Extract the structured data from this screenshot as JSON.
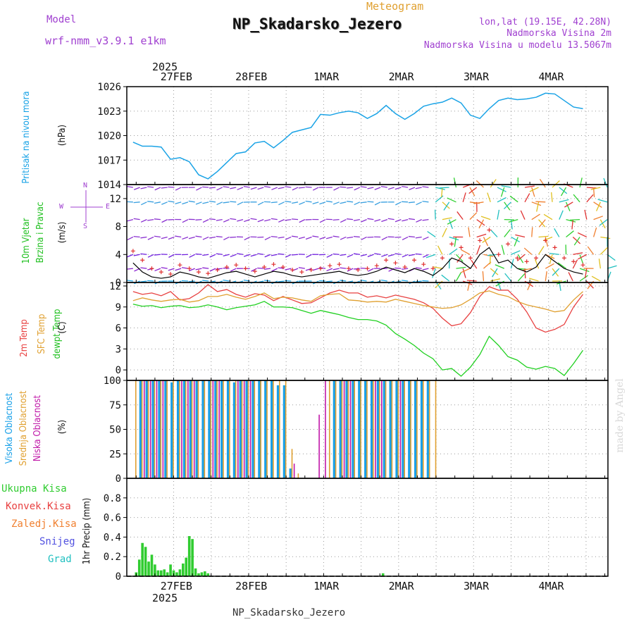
{
  "header": {
    "model_label": "Model",
    "model_name": "wrf-nmm_v3.9.1 e1km",
    "meteogram_label": "Meteogram",
    "station": "NP_Skadarsko_Jezero",
    "lonlat": "lon,lat (19.15E, 42.28N)",
    "elevation": "Nadmorska Visina 2m",
    "model_elevation": "Nadmorska Visina u modelu 13.5067m",
    "footer_station": "NP_Skadarsko_Jezero",
    "watermark": "made by Angel"
  },
  "colors": {
    "pressure": "#1aa3e6",
    "wind_speed": "#000000",
    "gust": "#e03030",
    "temp2m": "#e84040",
    "sfc": "#e0a030",
    "dewpt": "#20d020",
    "high_cloud": "#18a0e8",
    "mid_cloud": "#e0a030",
    "low_cloud": "#c018a8",
    "total_precip": "#30cc30",
    "conv_precip": "#e84040",
    "frozen_precip": "#f08030",
    "snow": "#5050e0",
    "hail": "#20c0c0"
  },
  "time_axis": {
    "year": "2025",
    "dates": [
      "27FEB",
      "28FEB",
      "1MAR",
      "2MAR",
      "3MAR",
      "4MAR"
    ]
  },
  "chart_data": [
    {
      "type": "line",
      "panel": "pressure",
      "ylabels": [
        "Pritisak na nivou mora",
        "(hPa)"
      ],
      "ylim": [
        1014,
        1026
      ],
      "yticks": [
        "1026",
        "1023",
        "1020",
        "1017",
        "1014"
      ],
      "x_hours": [
        0,
        3,
        6,
        9,
        12,
        15,
        18,
        21,
        24,
        27,
        30,
        33,
        36,
        39,
        42,
        45,
        48,
        51,
        54,
        57,
        60,
        63,
        66,
        69,
        72,
        75,
        78,
        81,
        84,
        87,
        90,
        93,
        96,
        99,
        102,
        105,
        108,
        111,
        114,
        117,
        120,
        123,
        126,
        129,
        132,
        135,
        138,
        141,
        144
      ],
      "series": [
        {
          "values": [
            1019.2,
            1018.7,
            1018.7,
            1018.6,
            1017.1,
            1017.3,
            1016.8,
            1015.2,
            1014.7,
            1015.6,
            1016.7,
            1017.8,
            1018.0,
            1019.1,
            1019.3,
            1018.5,
            1019.4,
            1020.4,
            1020.7,
            1021.0,
            1022.6,
            1022.5,
            1022.8,
            1023.0,
            1022.8,
            1022.1,
            1022.7,
            1023.7,
            1022.7,
            1022.0,
            1022.7,
            1023.6,
            1023.9,
            1024.1,
            1024.6,
            1024.0,
            1022.5,
            1022.1,
            1023.3,
            1024.3,
            1024.6,
            1024.4,
            1024.5,
            1024.7,
            1025.2,
            1025.1,
            1024.3,
            1023.5,
            1023.3
          ]
        }
      ]
    },
    {
      "type": "line",
      "panel": "wind",
      "ylabels": [
        "10m Vjetar",
        "Brzina i Pravac",
        "(m/s)"
      ],
      "direction_key": [
        "N",
        "W",
        "E",
        "S"
      ],
      "ylim": [
        0,
        14
      ],
      "yticks": [
        "12",
        "8",
        "4",
        "0"
      ],
      "x_hours": [
        0,
        3,
        6,
        9,
        12,
        15,
        18,
        21,
        24,
        27,
        30,
        33,
        36,
        39,
        42,
        45,
        48,
        51,
        54,
        57,
        60,
        63,
        66,
        69,
        72,
        75,
        78,
        81,
        84,
        87,
        90,
        93,
        96,
        99,
        102,
        105,
        108,
        111,
        114,
        117,
        120,
        123,
        126,
        129,
        132,
        135,
        138,
        141,
        144
      ],
      "series": [
        {
          "values": [
            2.8,
            1.5,
            0.8,
            0.6,
            0.8,
            1.5,
            1.2,
            0.8,
            0.6,
            1.0,
            1.4,
            1.6,
            1.2,
            0.8,
            1.2,
            1.6,
            1.4,
            1.0,
            0.8,
            1.0,
            1.2,
            1.4,
            1.6,
            1.2,
            1.0,
            1.2,
            1.6,
            2.2,
            1.8,
            1.4,
            2.0,
            1.6,
            1.0,
            2.0,
            3.5,
            3.0,
            2.0,
            4.0,
            5.0,
            2.8,
            3.2,
            2.0,
            1.5,
            2.2,
            4.0,
            3.0,
            2.0,
            1.5,
            1.2
          ]
        },
        {
          "values": [
            4.5,
            3.2,
            2.0,
            1.5,
            1.2,
            2.5,
            2.0,
            1.5,
            1.3,
            1.8,
            2.2,
            2.5,
            2.0,
            1.6,
            2.2,
            2.6,
            2.2,
            1.8,
            1.5,
            1.8,
            2.0,
            2.4,
            2.6,
            2.0,
            1.8,
            2.0,
            2.4,
            3.2,
            2.8,
            2.2,
            3.2,
            2.6,
            2.0,
            3.5,
            5.5,
            5.0,
            3.5,
            6.0,
            7.5,
            4.0,
            5.5,
            3.5,
            3.0,
            3.5,
            6.0,
            5.0,
            3.5,
            3.0,
            2.5
          ]
        }
      ]
    },
    {
      "type": "line",
      "panel": "temperature",
      "ylabels": [
        "2m Temp",
        "SFC Temp",
        "dewpt Temp",
        "(C)"
      ],
      "ylim": [
        -1.5,
        12.5
      ],
      "yticks": [
        "12",
        "9",
        "6",
        "3",
        "0"
      ],
      "x_hours": [
        0,
        3,
        6,
        9,
        12,
        15,
        18,
        21,
        24,
        27,
        30,
        33,
        36,
        39,
        42,
        45,
        48,
        51,
        54,
        57,
        60,
        63,
        66,
        69,
        72,
        75,
        78,
        81,
        84,
        87,
        90,
        93,
        96,
        99,
        102,
        105,
        108,
        111,
        114,
        117,
        120,
        123,
        126,
        129,
        132,
        135,
        138,
        141,
        144
      ],
      "series": [
        {
          "values": [
            11.2,
            10.8,
            11.0,
            10.6,
            11.2,
            10.0,
            10.2,
            11.0,
            12.2,
            11.2,
            11.5,
            10.8,
            10.4,
            10.9,
            10.7,
            9.9,
            10.5,
            10.0,
            9.5,
            9.6,
            10.3,
            11.0,
            11.4,
            11.0,
            11.0,
            10.4,
            10.6,
            10.3,
            10.7,
            10.4,
            10.1,
            9.6,
            8.8,
            7.4,
            6.3,
            6.6,
            8.2,
            10.5,
            11.9,
            11.4,
            11.4,
            10.1,
            8.3,
            6.0,
            5.4,
            5.8,
            6.5,
            9.0,
            10.8
          ]
        },
        {
          "values": [
            9.9,
            10.3,
            10.0,
            9.8,
            10.0,
            10.1,
            9.7,
            9.9,
            10.5,
            10.5,
            10.8,
            10.4,
            10.1,
            10.5,
            11.0,
            10.2,
            10.4,
            10.3,
            10.0,
            9.8,
            10.6,
            10.8,
            10.9,
            10.0,
            9.9,
            9.7,
            9.8,
            9.7,
            10.1,
            9.8,
            9.5,
            9.2,
            9.0,
            8.8,
            8.9,
            9.3,
            10.1,
            11.0,
            11.3,
            10.8,
            10.5,
            9.8,
            9.3,
            9.0,
            8.7,
            8.3,
            8.5,
            10.0,
            11.2
          ]
        },
        {
          "values": [
            9.4,
            9.1,
            9.2,
            8.9,
            9.1,
            9.2,
            8.9,
            9.0,
            9.3,
            9.0,
            8.6,
            8.9,
            9.1,
            9.3,
            9.8,
            9.0,
            9.0,
            8.9,
            8.5,
            8.1,
            8.5,
            8.2,
            7.9,
            7.5,
            7.2,
            7.2,
            7.0,
            6.4,
            5.2,
            4.4,
            3.5,
            2.4,
            1.6,
            0.0,
            0.2,
            -0.9,
            0.4,
            2.2,
            4.8,
            3.5,
            1.9,
            1.4,
            0.4,
            0.1,
            0.5,
            0.2,
            -0.8,
            0.9,
            2.8
          ]
        }
      ]
    },
    {
      "type": "bar",
      "panel": "clouds",
      "ylabels": [
        "Visoka Oblacnost",
        "Srednja Oblacnost",
        "Niska Oblacnost",
        "(%)"
      ],
      "ylim": [
        0,
        100
      ],
      "yticks": [
        "100",
        "75",
        "50",
        "25",
        "0"
      ],
      "x_hours": [
        0,
        2,
        4,
        6,
        8,
        10,
        12,
        14,
        16,
        18,
        20,
        22,
        24,
        26,
        28,
        30,
        32,
        34,
        36,
        38,
        40,
        42,
        44,
        46,
        48,
        50,
        52,
        54,
        56,
        58,
        60,
        62,
        64,
        66,
        68,
        70,
        72,
        74,
        76,
        78,
        80,
        82,
        84,
        86,
        88,
        90,
        92,
        94,
        96
      ],
      "series": [
        {
          "name": "Visoka Oblacnost",
          "values": [
            0,
            100,
            100,
            100,
            100,
            100,
            98,
            100,
            100,
            100,
            100,
            100,
            100,
            100,
            100,
            100,
            98,
            100,
            100,
            100,
            100,
            100,
            100,
            95,
            95,
            10,
            0,
            0,
            0,
            0,
            0,
            0,
            100,
            100,
            100,
            100,
            100,
            100,
            100,
            100,
            100,
            100,
            100,
            100,
            100,
            100,
            100,
            100,
            0
          ]
        },
        {
          "name": "Srednja Oblacnost",
          "values": [
            100,
            100,
            100,
            100,
            100,
            100,
            100,
            100,
            100,
            100,
            100,
            100,
            100,
            100,
            100,
            100,
            100,
            100,
            100,
            100,
            100,
            100,
            100,
            100,
            100,
            30,
            5,
            0,
            0,
            0,
            0,
            100,
            100,
            100,
            100,
            100,
            100,
            100,
            100,
            100,
            100,
            100,
            100,
            100,
            100,
            100,
            100,
            100,
            100
          ]
        },
        {
          "name": "Niska Oblacnost",
          "values": [
            0,
            100,
            100,
            100,
            100,
            0,
            0,
            100,
            100,
            100,
            0,
            0,
            100,
            100,
            0,
            0,
            100,
            100,
            100,
            0,
            0,
            0,
            0,
            0,
            0,
            15,
            0,
            0,
            0,
            65,
            100,
            0,
            0,
            100,
            100,
            0,
            0,
            0,
            100,
            100,
            0,
            0,
            100,
            0,
            0,
            0,
            0,
            0,
            0
          ]
        }
      ]
    },
    {
      "type": "bar",
      "panel": "precip",
      "ylabels": [
        "1hr Precip (mm)"
      ],
      "legend": [
        "Ukupna Kisa",
        "Konvek.Kisa",
        "Zaledj.Kisa",
        "Snijeg",
        "Grad"
      ],
      "ylim": [
        0,
        1.0
      ],
      "yticks": [
        "0.8",
        "0.6",
        "0.4",
        "0.2",
        "0"
      ],
      "x_hours": [
        1,
        2,
        3,
        4,
        5,
        6,
        7,
        8,
        9,
        10,
        11,
        12,
        13,
        14,
        15,
        16,
        17,
        18,
        19,
        20,
        21,
        22,
        23,
        24,
        80
      ],
      "series": [
        {
          "name": "Ukupna Kisa",
          "values": [
            0.04,
            0.17,
            0.34,
            0.3,
            0.15,
            0.22,
            0.12,
            0.06,
            0.06,
            0.07,
            0.04,
            0.12,
            0.06,
            0.04,
            0.07,
            0.13,
            0.19,
            0.41,
            0.38,
            0.08,
            0.03,
            0.04,
            0.05,
            0.03,
            0.03
          ]
        }
      ]
    }
  ]
}
